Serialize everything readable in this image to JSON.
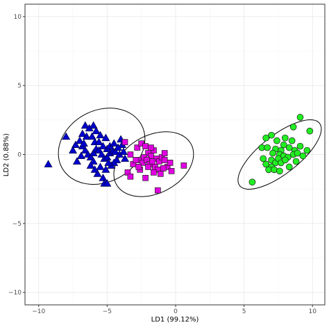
{
  "chart_data": {
    "type": "scatter",
    "xlabel": "LD1 (99.12%)",
    "ylabel": "LD2 (0.88%)",
    "xlim": [
      -11.0,
      10.9
    ],
    "ylim": [
      -10.9,
      10.9
    ],
    "x_ticks": [
      -10,
      -5,
      0,
      5,
      10
    ],
    "y_ticks": [
      -10,
      -5,
      0,
      5,
      10
    ],
    "x_tick_labels": [
      "−10",
      "−5",
      "0",
      "5",
      "10"
    ],
    "y_tick_labels": [
      "−10",
      "−5",
      "0",
      "5",
      "10"
    ],
    "grid": true,
    "legend": "none",
    "series": [
      {
        "marker": "triangle",
        "color": "#0000cc",
        "points": [
          [
            -9.3,
            -0.7
          ],
          [
            -6.6,
            2.1
          ],
          [
            -6.3,
            1.9
          ],
          [
            -6.0,
            2.1
          ],
          [
            -5.8,
            1.7
          ],
          [
            -5.5,
            1.4
          ],
          [
            -5.1,
            1.2
          ],
          [
            -7.3,
            0.7
          ],
          [
            -7.0,
            1.0
          ],
          [
            -6.8,
            0.6
          ],
          [
            -6.6,
            0.3
          ],
          [
            -6.4,
            0.0
          ],
          [
            -6.2,
            -0.2
          ],
          [
            -6.0,
            0.1
          ],
          [
            -5.8,
            0.4
          ],
          [
            -5.6,
            0.3
          ],
          [
            -5.4,
            0.0
          ],
          [
            -5.2,
            -0.3
          ],
          [
            -5.0,
            -0.2
          ],
          [
            -4.8,
            0.1
          ],
          [
            -4.6,
            0.3
          ],
          [
            -4.4,
            0.2
          ],
          [
            -4.3,
            -0.4
          ],
          [
            -4.5,
            -0.6
          ],
          [
            -4.7,
            -0.8
          ],
          [
            -6.0,
            -0.5
          ],
          [
            -6.2,
            -0.8
          ],
          [
            -5.7,
            -1.4
          ],
          [
            -5.3,
            -1.7
          ],
          [
            -5.1,
            -1.1
          ],
          [
            -3.9,
            0.7
          ],
          [
            -3.7,
            -0.3
          ],
          [
            -4.0,
            1.1
          ],
          [
            -6.8,
            1.5
          ],
          [
            -6.7,
            0.8
          ],
          [
            -6.5,
            1.3
          ],
          [
            -6.1,
            1.3
          ],
          [
            -5.9,
            0.9
          ],
          [
            -5.6,
            0.9
          ],
          [
            -5.3,
            0.6
          ],
          [
            -5.0,
            0.4
          ],
          [
            -4.8,
            0.6
          ],
          [
            -4.5,
            0.8
          ],
          [
            -4.2,
            0.5
          ],
          [
            -4.1,
            0.0
          ],
          [
            -3.8,
            0.2
          ],
          [
            -5.9,
            -1.1
          ],
          [
            -5.5,
            -0.9
          ],
          [
            -4.9,
            -0.6
          ],
          [
            -5.2,
            -2.1
          ],
          [
            -5.0,
            -2.1
          ],
          [
            -6.9,
            -0.1
          ],
          [
            -7.2,
            -0.5
          ],
          [
            -7.5,
            0.3
          ],
          [
            -8.0,
            1.3
          ]
        ]
      },
      {
        "marker": "square",
        "color": "#e000e0",
        "points": [
          [
            -3.7,
            0.9
          ],
          [
            -3.3,
            0.0
          ],
          [
            -2.8,
            0.5
          ],
          [
            -2.5,
            0.8
          ],
          [
            -2.2,
            0.6
          ],
          [
            -2.0,
            0.1
          ],
          [
            -1.8,
            -0.1
          ],
          [
            -1.6,
            0.3
          ],
          [
            -1.4,
            -0.3
          ],
          [
            -1.2,
            -0.5
          ],
          [
            -1.0,
            -0.2
          ],
          [
            -0.8,
            -0.4
          ],
          [
            -0.6,
            -0.9
          ],
          [
            -2.6,
            -0.4
          ],
          [
            -2.4,
            -0.6
          ],
          [
            -2.3,
            -0.2
          ],
          [
            -2.1,
            -0.4
          ],
          [
            -1.9,
            -0.7
          ],
          [
            -1.7,
            -0.5
          ],
          [
            -1.5,
            -0.9
          ],
          [
            -1.3,
            -1.1
          ],
          [
            -3.5,
            -1.3
          ],
          [
            -3.1,
            -0.7
          ],
          [
            -2.9,
            -0.4
          ],
          [
            -2.6,
            -1.1
          ],
          [
            -1.1,
            -1.4
          ],
          [
            -0.9,
            -1.0
          ],
          [
            -1.6,
            -1.3
          ],
          [
            -3.3,
            -1.6
          ],
          [
            -2.2,
            -1.7
          ],
          [
            -1.3,
            -2.6
          ],
          [
            0.6,
            -0.8
          ],
          [
            -0.8,
            0.1
          ],
          [
            -2.0,
            -0.9
          ],
          [
            -1.8,
            0.5
          ],
          [
            -0.4,
            -0.6
          ],
          [
            -2.7,
            -0.9
          ],
          [
            -0.3,
            -1.2
          ]
        ]
      },
      {
        "marker": "circle",
        "color": "#22ee22",
        "points": [
          [
            9.1,
            2.7
          ],
          [
            9.8,
            1.7
          ],
          [
            8.6,
            2.0
          ],
          [
            7.0,
            1.4
          ],
          [
            6.6,
            1.2
          ],
          [
            6.3,
            0.5
          ],
          [
            6.7,
            0.5
          ],
          [
            7.3,
            0.4
          ],
          [
            7.7,
            0.3
          ],
          [
            7.9,
            0.7
          ],
          [
            8.3,
            0.5
          ],
          [
            8.7,
            0.3
          ],
          [
            9.1,
            0.6
          ],
          [
            9.6,
            0.3
          ],
          [
            7.6,
            0.0
          ],
          [
            7.9,
            -0.1
          ],
          [
            8.2,
            -0.2
          ],
          [
            8.6,
            0.0
          ],
          [
            8.9,
            0.1
          ],
          [
            7.0,
            -0.4
          ],
          [
            7.3,
            -0.6
          ],
          [
            7.5,
            -0.3
          ],
          [
            7.7,
            -0.6
          ],
          [
            8.0,
            -0.4
          ],
          [
            8.3,
            -0.9
          ],
          [
            7.0,
            -0.9
          ],
          [
            6.6,
            -0.7
          ],
          [
            6.8,
            -1.1
          ],
          [
            7.2,
            -1.1
          ],
          [
            7.6,
            -1.2
          ],
          [
            5.6,
            -2.0
          ],
          [
            8.5,
            1.0
          ],
          [
            8.0,
            1.2
          ],
          [
            7.4,
            1.0
          ],
          [
            7.1,
            0.1
          ],
          [
            6.4,
            -0.3
          ],
          [
            8.8,
            -0.5
          ],
          [
            9.3,
            -0.1
          ]
        ]
      }
    ],
    "ellipses": [
      {
        "center": [
          -5.4,
          0.6
        ],
        "rx": 3.3,
        "ry": 2.6,
        "rotation": -28
      },
      {
        "center": [
          -1.6,
          -0.7
        ],
        "rx": 3.1,
        "ry": 2.1,
        "rotation": -28
      },
      {
        "center": [
          7.6,
          0.0
        ],
        "rx": 3.7,
        "ry": 1.4,
        "rotation": -38
      }
    ]
  }
}
